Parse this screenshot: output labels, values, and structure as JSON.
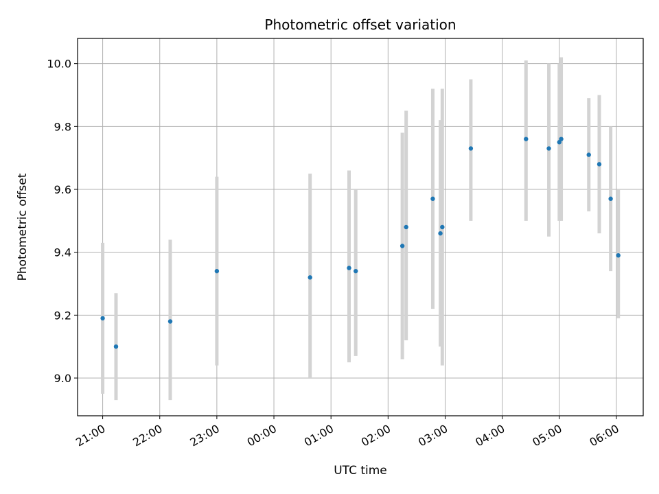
{
  "chart_data": {
    "type": "scatter",
    "title": "Photometric offset variation",
    "xlabel": "UTC time",
    "ylabel": "Photometric offset",
    "x_axis": "time",
    "x_ticks": [
      "21:00",
      "22:00",
      "23:00",
      "00:00",
      "01:00",
      "02:00",
      "03:00",
      "04:00",
      "05:00",
      "06:00"
    ],
    "x_tick_hours": [
      0,
      1,
      2,
      3,
      4,
      5,
      6,
      7,
      8,
      9
    ],
    "x_range_hours": [
      -0.44,
      9.47
    ],
    "y_ticks": [
      "9.0",
      "9.2",
      "9.4",
      "9.6",
      "9.8",
      "10.0"
    ],
    "y_tick_values": [
      9.0,
      9.2,
      9.4,
      9.6,
      9.8,
      10.0
    ],
    "ylim": [
      8.88,
      10.08
    ],
    "grid": true,
    "colors": {
      "point": "#1f77b4",
      "errorbar": "#d3d3d3",
      "grid": "#b0b0b0"
    },
    "series": [
      {
        "points": [
          {
            "t": "21:00",
            "y": 9.19,
            "ylo": 8.95,
            "yhi": 9.43
          },
          {
            "t": "21:14",
            "y": 9.1,
            "ylo": 8.93,
            "yhi": 9.27
          },
          {
            "t": "22:11",
            "y": 9.18,
            "ylo": 8.93,
            "yhi": 9.44
          },
          {
            "t": "23:00",
            "y": 9.34,
            "ylo": 9.04,
            "yhi": 9.64
          },
          {
            "t": "00:38",
            "y": 9.32,
            "ylo": 9.0,
            "yhi": 9.65
          },
          {
            "t": "01:19",
            "y": 9.35,
            "ylo": 9.05,
            "yhi": 9.66
          },
          {
            "t": "01:26",
            "y": 9.34,
            "ylo": 9.07,
            "yhi": 9.6
          },
          {
            "t": "02:15",
            "y": 9.42,
            "ylo": 9.06,
            "yhi": 9.78
          },
          {
            "t": "02:19",
            "y": 9.48,
            "ylo": 9.12,
            "yhi": 9.85
          },
          {
            "t": "02:47",
            "y": 9.57,
            "ylo": 9.22,
            "yhi": 9.92
          },
          {
            "t": "02:55",
            "y": 9.46,
            "ylo": 9.1,
            "yhi": 9.82
          },
          {
            "t": "02:57",
            "y": 9.48,
            "ylo": 9.04,
            "yhi": 9.92
          },
          {
            "t": "03:27",
            "y": 9.73,
            "ylo": 9.5,
            "yhi": 9.95
          },
          {
            "t": "04:25",
            "y": 9.76,
            "ylo": 9.5,
            "yhi": 10.01
          },
          {
            "t": "04:49",
            "y": 9.73,
            "ylo": 9.45,
            "yhi": 10.0
          },
          {
            "t": "05:00",
            "y": 9.75,
            "ylo": 9.5,
            "yhi": 10.0
          },
          {
            "t": "05:02",
            "y": 9.76,
            "ylo": 9.5,
            "yhi": 10.02
          },
          {
            "t": "05:31",
            "y": 9.71,
            "ylo": 9.53,
            "yhi": 9.89
          },
          {
            "t": "05:42",
            "y": 9.68,
            "ylo": 9.46,
            "yhi": 9.9
          },
          {
            "t": "05:54",
            "y": 9.57,
            "ylo": 9.34,
            "yhi": 9.8
          },
          {
            "t": "06:02",
            "y": 9.39,
            "ylo": 9.19,
            "yhi": 9.6
          }
        ]
      }
    ]
  }
}
